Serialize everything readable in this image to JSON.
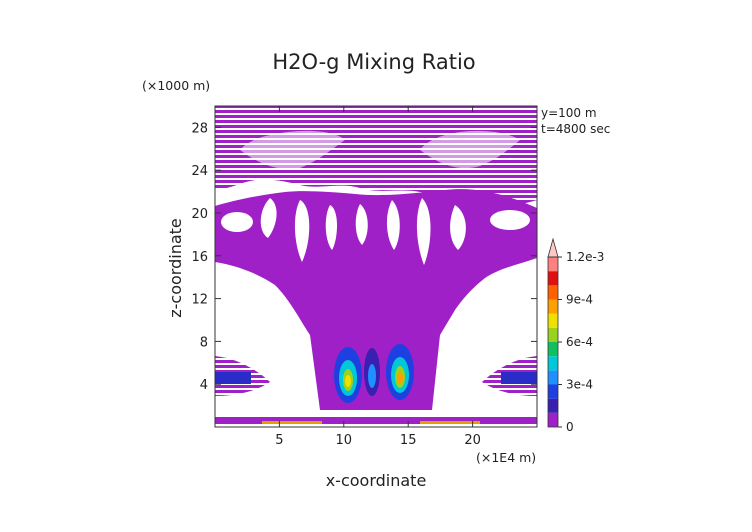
{
  "chart_data": {
    "type": "heatmap",
    "title": "H2O-g Mixing Ratio",
    "xlabel": "x-coordinate",
    "ylabel": "z-coordinate",
    "x_unit": "(×1E4 m)",
    "y_unit": "(×1000 m)",
    "annotations": [
      "y=100 m",
      "t=4800 sec"
    ],
    "xlim": [
      0,
      25
    ],
    "ylim": [
      0,
      30
    ],
    "x_ticks": [
      5,
      10,
      15,
      20
    ],
    "y_ticks": [
      4,
      8,
      12,
      16,
      20,
      24,
      28
    ],
    "colorbar": {
      "levels": [
        0,
        0.0001,
        0.0002,
        0.0003,
        0.0004,
        0.0005,
        0.0006,
        0.0007,
        0.0008,
        0.0009,
        0.001,
        0.0011,
        0.0012
      ],
      "tick_values": [
        0,
        0.0003,
        0.0006,
        0.0009,
        0.0012
      ],
      "tick_labels": [
        "0",
        "3e-4",
        "6e-4",
        "9e-4",
        "1.2e-3"
      ],
      "colors": [
        "#a020c8",
        "#3a1fb0",
        "#1f3fe0",
        "#1e90ff",
        "#00c8d8",
        "#10c060",
        "#9ad21e",
        "#f0e000",
        "#ffa000",
        "#ff6000",
        "#e01010",
        "#ff8080",
        "#ffc8c8"
      ],
      "extend_top": true
    }
  }
}
